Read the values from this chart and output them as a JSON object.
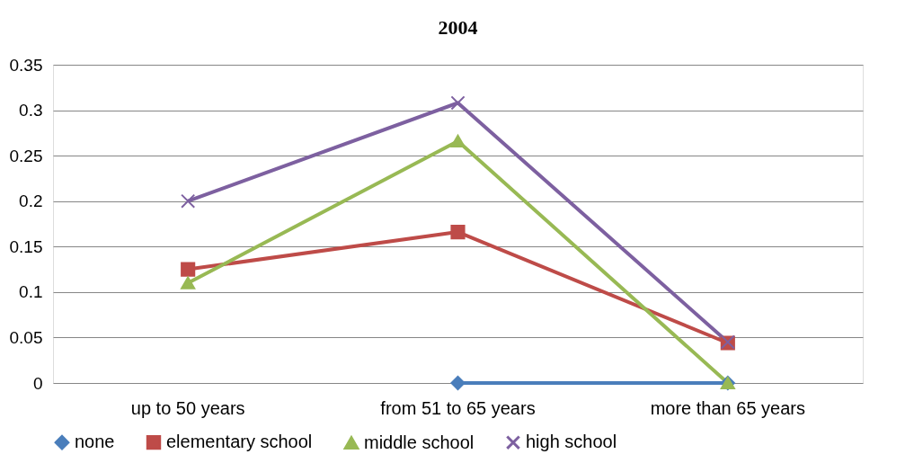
{
  "chart_data": {
    "type": "line",
    "title": "2004",
    "categories": [
      "up to 50 years",
      "from 51 to 65 years",
      "more than 65 years"
    ],
    "series": [
      {
        "name": "none",
        "color": "#4a7ebb",
        "marker": "diamond",
        "values": [
          null,
          0,
          0
        ]
      },
      {
        "name": "elementary school",
        "color": "#be4b48",
        "marker": "square",
        "values": [
          0.125,
          0.166,
          0.044
        ]
      },
      {
        "name": "middle school",
        "color": "#98b954",
        "marker": "triangle",
        "values": [
          0.11,
          0.266,
          0
        ]
      },
      {
        "name": "high school",
        "color": "#7d60a0",
        "marker": "cross",
        "values": [
          0.2,
          0.308,
          0.045
        ]
      }
    ],
    "ylim": [
      0,
      0.35
    ],
    "yticks": [
      0,
      0.05,
      0.1,
      0.15,
      0.2,
      0.25,
      0.3,
      0.35
    ],
    "grid": "y",
    "legend": "bottom",
    "line_style": "solid"
  }
}
